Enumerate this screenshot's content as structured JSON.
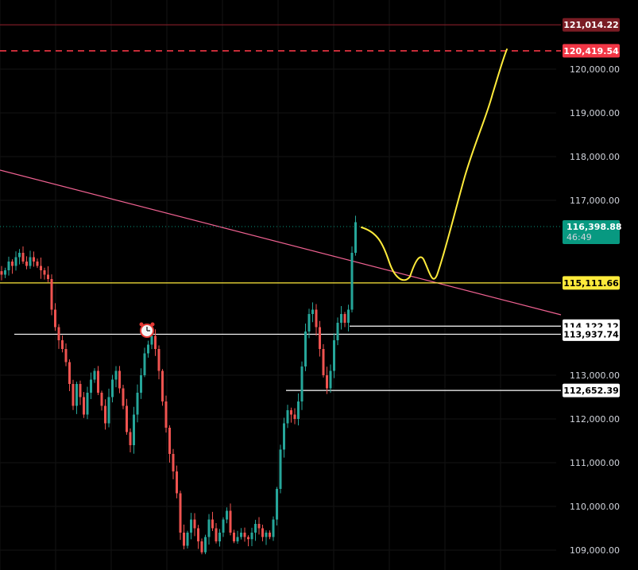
{
  "chart_data": {
    "type": "candlestick",
    "y_axis": {
      "range": [
        108750,
        121600
      ],
      "ticks": [
        {
          "value": 120000,
          "label": "120,000.00"
        },
        {
          "value": 119000,
          "label": "119,000.00"
        },
        {
          "value": 118000,
          "label": "118,000.00"
        },
        {
          "value": 117000,
          "label": "117,000.00"
        },
        {
          "value": 113000,
          "label": "113,000.00"
        },
        {
          "value": 112000,
          "label": "112,000.00"
        },
        {
          "value": 111000,
          "label": "111,000.00"
        },
        {
          "value": 110000,
          "label": "110,000.00"
        },
        {
          "value": 109000,
          "label": "109,000.00"
        }
      ]
    },
    "price_lines": [
      {
        "name": "resistance-top",
        "value": 121014.22,
        "label": "121,014.22",
        "color": "#7a1c24",
        "text_color": "#ffffff",
        "style": "solid"
      },
      {
        "name": "target",
        "value": 120419.54,
        "label": "120,419.54",
        "color": "#f23645",
        "text_color": "#ffffff",
        "style": "dashed"
      },
      {
        "name": "support-yellow",
        "value": 115111.66,
        "label": "115,111.66",
        "color": "#ffeb3b",
        "text_color": "#000000",
        "style": "solid"
      },
      {
        "name": "level-1",
        "value": 114122.12,
        "label": "114,122.12",
        "color": "#ffffff",
        "text_color": "#000000",
        "style": "solid"
      },
      {
        "name": "level-2",
        "value": 113937.74,
        "label": "113,937.74",
        "color": "#ffffff",
        "text_color": "#000000",
        "style": "solid"
      },
      {
        "name": "level-3",
        "value": 112652.39,
        "label": "112,652.39",
        "color": "#ffffff",
        "text_color": "#000000",
        "style": "solid"
      }
    ],
    "current_price": {
      "value": 116398.88,
      "label": "116,398.88",
      "countdown": "46:49",
      "color": "#089981"
    },
    "colors": {
      "up": "#26a69a",
      "down": "#ef5350",
      "trendline": "#f06292",
      "projection": "#ffeb3b"
    },
    "candle_closes": [
      115300,
      115400,
      115600,
      115500,
      115700,
      115800,
      115600,
      115500,
      115700,
      115600,
      115500,
      115400,
      115300,
      115200,
      114500,
      114100,
      113800,
      113600,
      113300,
      112800,
      112300,
      112800,
      112500,
      112100,
      112600,
      112900,
      113100,
      112600,
      112300,
      111900,
      112500,
      112900,
      113100,
      112700,
      112300,
      111700,
      111400,
      112100,
      112600,
      113000,
      113500,
      113700,
      113900,
      113600,
      113100,
      112400,
      111800,
      111200,
      110800,
      110300,
      109400,
      109100,
      109400,
      109700,
      109500,
      109200,
      108950,
      109300,
      109700,
      109500,
      109200,
      109400,
      109700,
      109900,
      109400,
      109200,
      109300,
      109400,
      109300,
      109250,
      109400,
      109600,
      109500,
      109300,
      109400,
      109300,
      109700,
      110400,
      111300,
      111900,
      112200,
      112100,
      112000,
      112400,
      113200,
      114000,
      114400,
      114500,
      114100,
      113600,
      113000,
      112700,
      113100,
      113800,
      114200,
      114400,
      114200,
      114500,
      115800,
      116500
    ]
  }
}
